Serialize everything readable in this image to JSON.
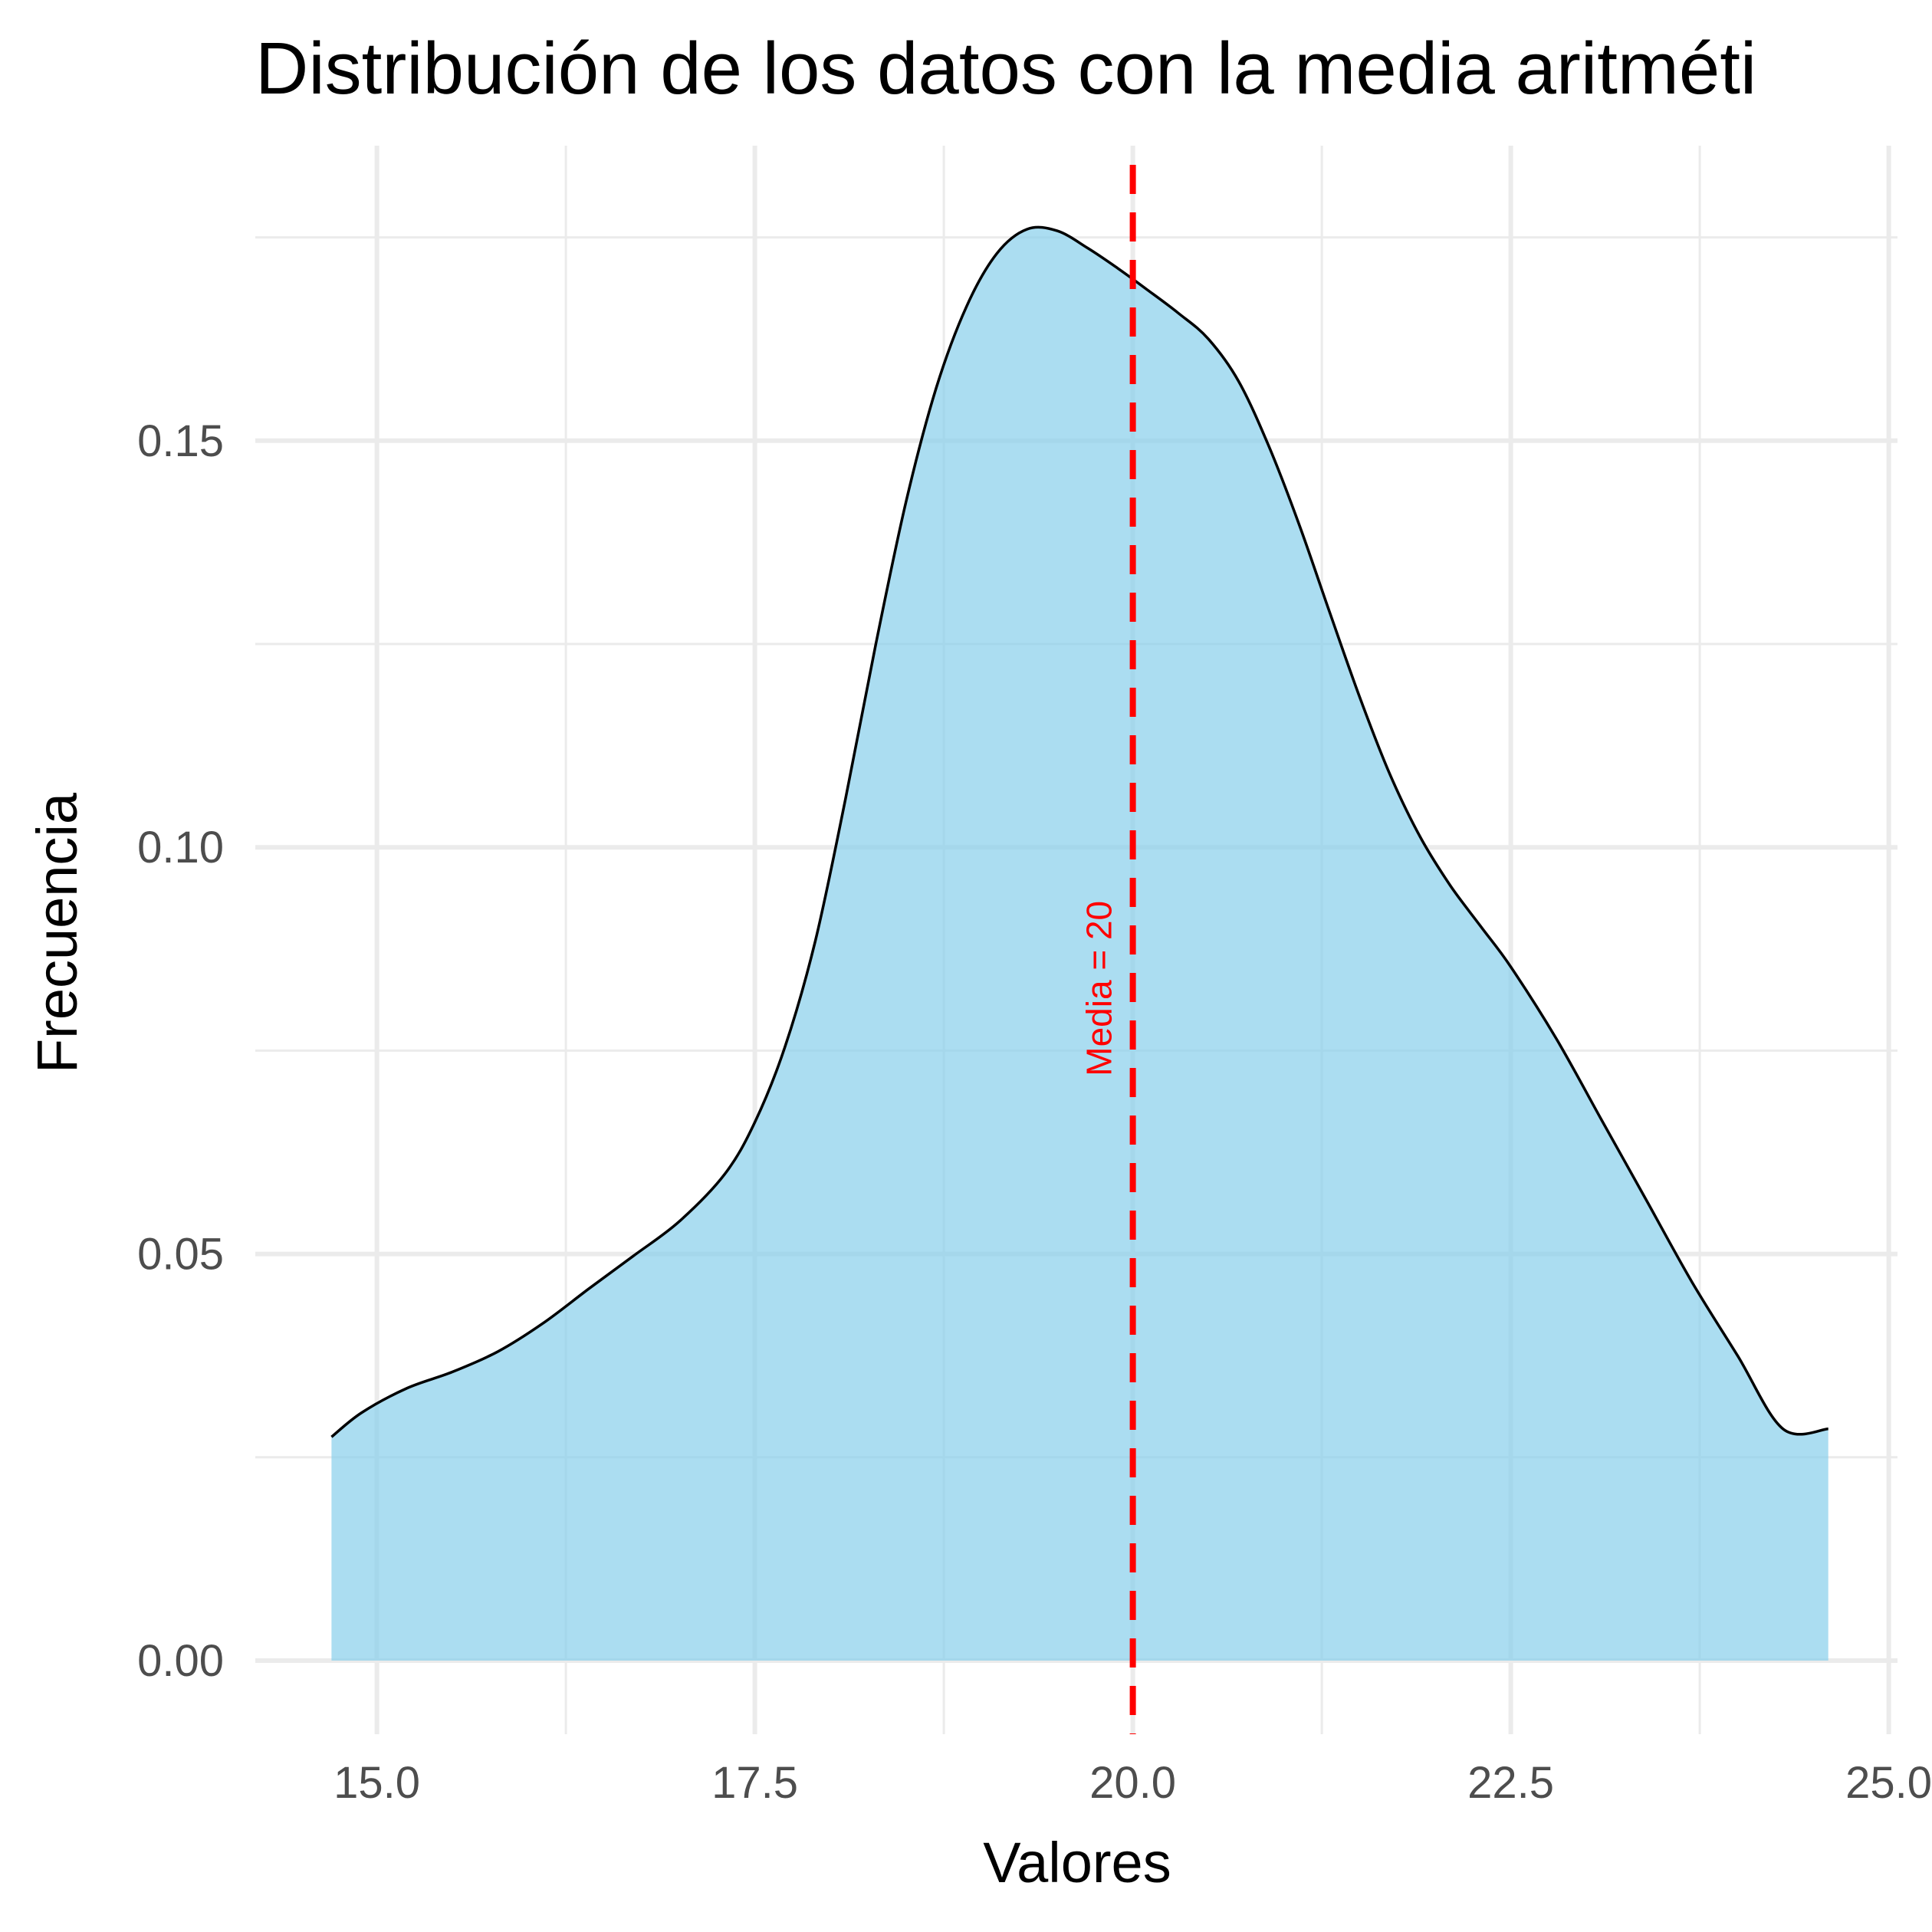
{
  "chart_data": {
    "type": "area",
    "title": "Distribución de los datos con la media aritméti",
    "xlabel": "Valores",
    "ylabel": "Frecuencia",
    "xlim": [
      14.2,
      25.0
    ],
    "ylim": [
      -0.008,
      0.186
    ],
    "x_ticks": [
      15.0,
      17.5,
      20.0,
      22.5,
      25.0
    ],
    "x_tick_labels": [
      "15.0",
      "17.5",
      "20.0",
      "22.5",
      "25.0"
    ],
    "x_minor_ticks": [
      16.25,
      18.75,
      21.25,
      23.75
    ],
    "y_ticks": [
      0.0,
      0.05,
      0.1,
      0.15
    ],
    "y_tick_labels": [
      "0.00",
      "0.05",
      "0.10",
      "0.15"
    ],
    "y_minor_ticks": [
      0.025,
      0.075,
      0.125,
      0.175
    ],
    "grid": true,
    "fill_color": "#87CEEB",
    "fill_opacity": 0.7,
    "line_color": "#000000",
    "series": [
      {
        "x": [
          14.7,
          14.9,
          15.2,
          15.5,
          15.8,
          16.1,
          16.4,
          16.7,
          17.0,
          17.3,
          17.5,
          17.7,
          17.9,
          18.1,
          18.3,
          18.5,
          18.7,
          18.9,
          19.1,
          19.3,
          19.5,
          19.7,
          19.9,
          20.1,
          20.3,
          20.5,
          20.7,
          20.9,
          21.1,
          21.3,
          21.5,
          21.7,
          21.9,
          22.1,
          22.3,
          22.5,
          22.8,
          23.1,
          23.4,
          23.7,
          24.0,
          24.3,
          24.6
        ],
        "y": [
          0.0275,
          0.0305,
          0.0335,
          0.0355,
          0.038,
          0.0415,
          0.0457,
          0.0498,
          0.054,
          0.0598,
          0.0662,
          0.0755,
          0.0885,
          0.106,
          0.125,
          0.1425,
          0.1565,
          0.1665,
          0.173,
          0.176,
          0.1758,
          0.1737,
          0.1712,
          0.1685,
          0.1657,
          0.1625,
          0.1573,
          0.1493,
          0.1397,
          0.129,
          0.1185,
          0.109,
          0.1013,
          0.0953,
          0.0903,
          0.0853,
          0.0765,
          0.0665,
          0.0565,
          0.0465,
          0.0375,
          0.0285,
          0.0285
        ]
      }
    ],
    "mean_line": {
      "x": 20.0,
      "color": "#ff0000",
      "style": "dashed"
    },
    "annotations": [
      {
        "text": "Media = 20",
        "x": 20.0,
        "y": 0.085,
        "rotation": 90,
        "color": "#ff0000"
      }
    ]
  }
}
